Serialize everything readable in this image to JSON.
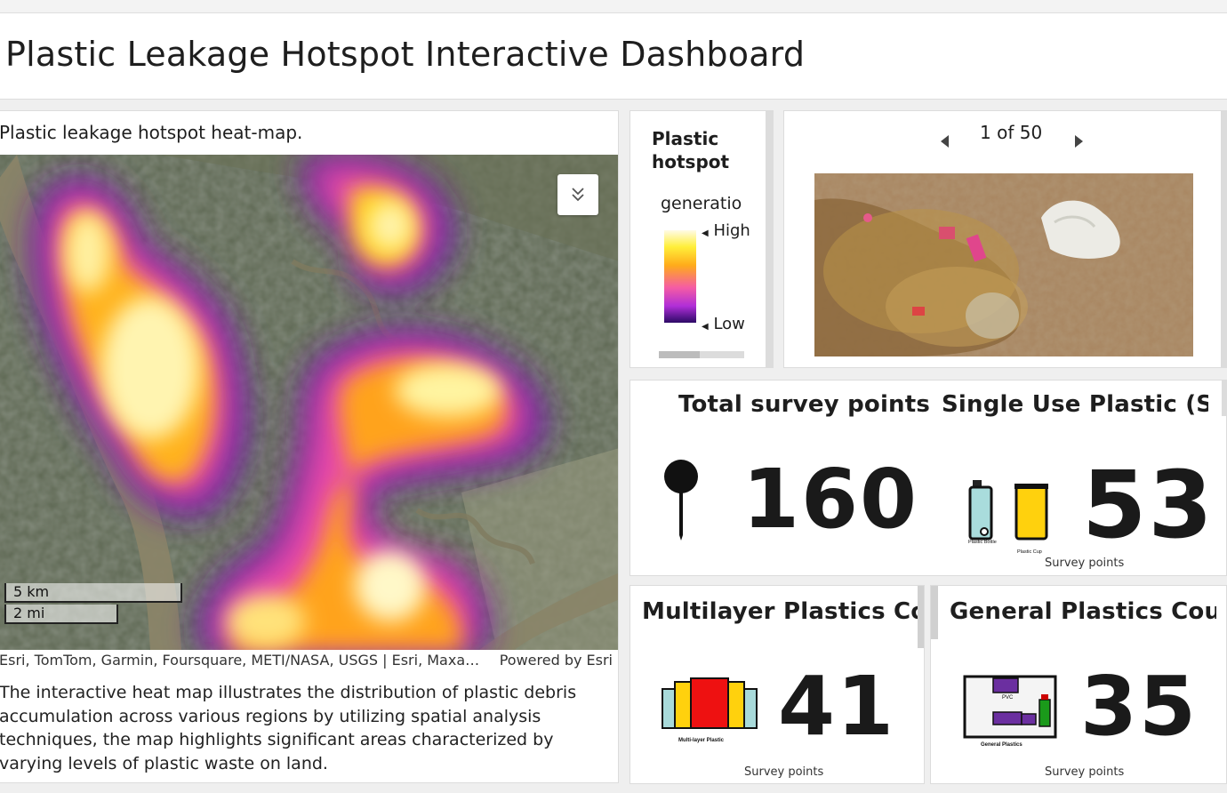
{
  "header": {
    "title": "Plastic Leakage Hotspot Interactive Dashboard"
  },
  "map": {
    "heading": "Plastic leakage hotspot heat-map.",
    "expand_icon": "chevron-double-down-icon",
    "scale": {
      "km": "5 km",
      "mi": "2 mi"
    },
    "attribution": "Esri, TomTom, Garmin, Foursquare, METI/NASA, USGS | Esri, Maxa…",
    "powered_by": "Powered by Esri",
    "description": "The interactive heat map illustrates the distribution of plastic debris accumulation across various regions by utilizing spatial analysis techniques, the map highlights significant areas characterized by varying levels of plastic waste on land."
  },
  "legend": {
    "title": "Plastic hotspot",
    "field": "generatio",
    "high": "High",
    "low": "Low",
    "ramp_colors": [
      "#fffbe6",
      "#ffef3a",
      "#ffab1a",
      "#f55ca4",
      "#b02ed8",
      "#2c0a66"
    ]
  },
  "gallery": {
    "current": 1,
    "total": 50,
    "pager_text": "1 of 50"
  },
  "stats": {
    "total": {
      "title": "Total survey points",
      "value": "160",
      "icon": "map-pin-icon"
    },
    "sup": {
      "title": "Single Use Plastic (SUP) Count",
      "value": "53",
      "subtitle": "Survey points",
      "icon_labels": [
        "Plastic Bottle",
        "Plastic Cup"
      ]
    },
    "multilayer": {
      "title": "Multilayer Plastics Count",
      "value": "41",
      "subtitle": "Survey points",
      "icon_label": "Multi-layer Plastic"
    },
    "general": {
      "title": "General Plastics Count",
      "value": "35",
      "subtitle": "Survey points",
      "icon_labels": [
        "PVC",
        "General Plastics"
      ]
    }
  }
}
